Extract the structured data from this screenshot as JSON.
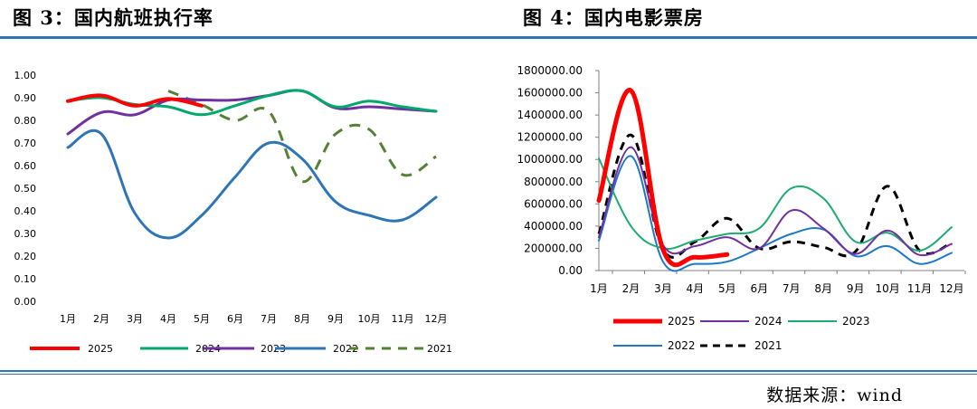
{
  "titles": {
    "left": "图 3：国内航班执行率",
    "right": "图 4：国内电影票房"
  },
  "source": "数据来源：wind",
  "colors": {
    "2025": "#FF0000",
    "2024_left": "#00A86B",
    "2023_left": "#7030A0",
    "2022_left": "#2E75B6",
    "2021_left": "#548235",
    "2024_right": "#7030A0",
    "2023_right": "#1DAB6F",
    "2022_right": "#1F77C8",
    "2021_right": "#000000",
    "rule": "#2E75B6"
  },
  "chart_data": [
    {
      "type": "line",
      "categories": [
        "1月",
        "2月",
        "3月",
        "4月",
        "5月",
        "6月",
        "7月",
        "8月",
        "9月",
        "10月",
        "11月",
        "12月"
      ],
      "ylim": [
        0,
        1
      ],
      "yticks": [
        "1.00",
        "0.90",
        "0.80",
        "0.70",
        "0.60",
        "0.50",
        "0.40",
        "0.30",
        "0.20",
        "0.10",
        "0.00"
      ],
      "legend_position": "bottom",
      "grid": false,
      "series": [
        {
          "name": "2025",
          "color": "#FF0000",
          "dash": false,
          "width": 4,
          "values": [
            0.885,
            0.91,
            0.865,
            0.895,
            0.865,
            null,
            null,
            null,
            null,
            null,
            null,
            null
          ]
        },
        {
          "name": "2024",
          "color": "#00A86B",
          "dash": false,
          "width": 3,
          "values": [
            0.885,
            0.9,
            0.87,
            0.86,
            0.825,
            0.865,
            0.91,
            0.93,
            0.86,
            0.885,
            0.86,
            0.84
          ]
        },
        {
          "name": "2023",
          "color": "#7030A0",
          "dash": false,
          "width": 3,
          "values": [
            0.74,
            0.835,
            0.825,
            0.89,
            0.89,
            0.89,
            0.91,
            0.93,
            0.855,
            0.86,
            0.85,
            0.84
          ]
        },
        {
          "name": "2022",
          "color": "#2E75B6",
          "dash": false,
          "width": 3,
          "values": [
            0.68,
            0.74,
            0.39,
            0.28,
            0.38,
            0.55,
            0.7,
            0.63,
            0.44,
            0.38,
            0.36,
            0.46
          ]
        },
        {
          "name": "2021",
          "color": "#548235",
          "dash": true,
          "width": 3,
          "values": [
            null,
            null,
            null,
            0.93,
            0.87,
            0.8,
            0.84,
            0.53,
            0.74,
            0.76,
            0.56,
            0.64
          ]
        }
      ]
    },
    {
      "type": "line",
      "categories": [
        "1月",
        "2月",
        "3月",
        "4月",
        "5月",
        "6月",
        "7月",
        "8月",
        "9月",
        "10月",
        "11月",
        "12月"
      ],
      "ylim": [
        0,
        1800000
      ],
      "yticks": [
        "1800000.00",
        "1600000.00",
        "1400000.00",
        "1200000.00",
        "1000000.00",
        "800000.00",
        "600000.00",
        "400000.00",
        "200000.00",
        "0.00"
      ],
      "legend_position": "bottom",
      "grid": false,
      "series": [
        {
          "name": "2025",
          "color": "#FF0000",
          "dash": false,
          "width": 5,
          "values": [
            630000,
            1620000,
            190000,
            120000,
            145000,
            null,
            null,
            null,
            null,
            null,
            null,
            null
          ]
        },
        {
          "name": "2024",
          "color": "#7030A0",
          "dash": false,
          "width": 2,
          "values": [
            300000,
            1110000,
            230000,
            220000,
            300000,
            200000,
            540000,
            380000,
            150000,
            360000,
            140000,
            240000
          ]
        },
        {
          "name": "2023",
          "color": "#1DAB6F",
          "dash": false,
          "width": 2,
          "values": [
            1010000,
            400000,
            200000,
            270000,
            330000,
            380000,
            740000,
            650000,
            260000,
            340000,
            180000,
            390000
          ]
        },
        {
          "name": "2022",
          "color": "#1F77C8",
          "dash": false,
          "width": 2,
          "values": [
            270000,
            1030000,
            80000,
            60000,
            80000,
            200000,
            330000,
            370000,
            130000,
            220000,
            60000,
            160000
          ]
        },
        {
          "name": "2021",
          "color": "#000000",
          "dash": true,
          "width": 3,
          "values": [
            330000,
            1220000,
            190000,
            260000,
            470000,
            200000,
            260000,
            210000,
            170000,
            760000,
            180000,
            250000
          ]
        }
      ]
    }
  ]
}
